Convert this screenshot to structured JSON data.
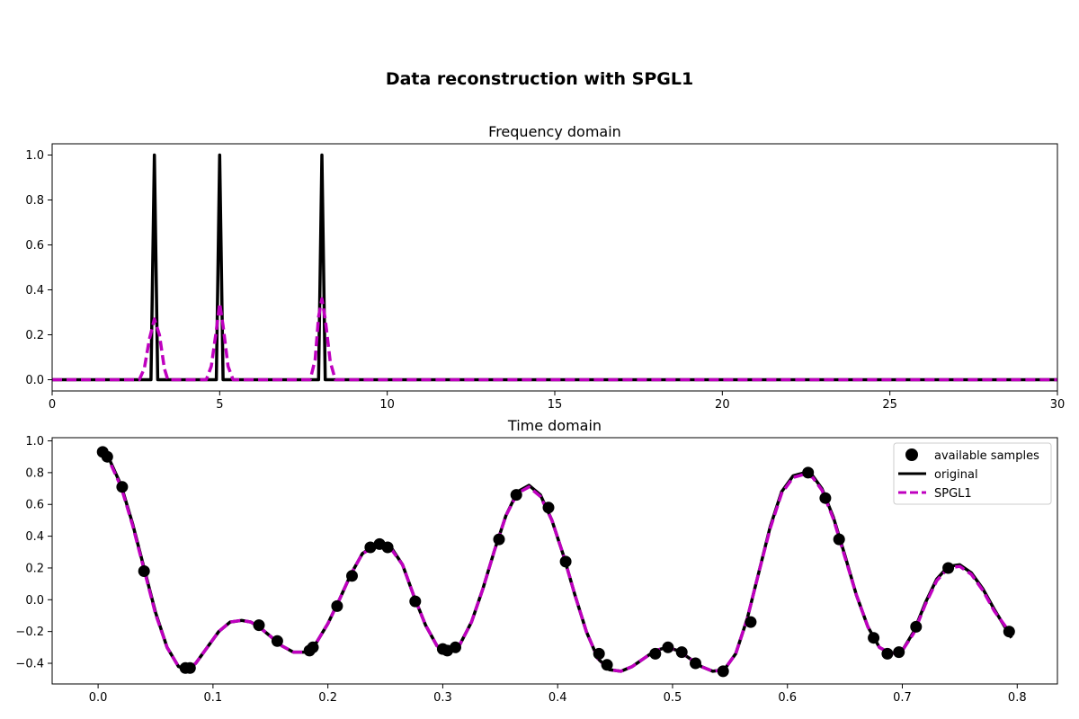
{
  "figure": {
    "suptitle": "Data reconstruction with SPGL1"
  },
  "colors": {
    "original": "#000000",
    "spgl1": "#bf00bf",
    "samples": "#000000"
  },
  "chart_data": [
    {
      "type": "line",
      "title": "Frequency domain",
      "xlabel": "",
      "ylabel": "",
      "xlim": [
        0,
        30
      ],
      "ylim": [
        -0.05,
        1.05
      ],
      "xticks": [
        0,
        5,
        10,
        15,
        20,
        25,
        30
      ],
      "xtick_labels": [
        "0",
        "5",
        "10",
        "15",
        "20",
        "25",
        "30"
      ],
      "yticks": [
        0.0,
        0.2,
        0.4,
        0.6,
        0.8,
        1.0
      ],
      "ytick_labels": [
        "0.0",
        "0.2",
        "0.4",
        "0.6",
        "0.8",
        "1.0"
      ],
      "grid": false,
      "series": [
        {
          "name": "original",
          "style": "solid",
          "x": [
            0,
            2.95,
            3.05,
            3.15,
            4.9,
            5.0,
            5.1,
            7.95,
            8.05,
            8.15,
            30
          ],
          "y": [
            0,
            0,
            1.0,
            0,
            0,
            1.0,
            0,
            0,
            1.0,
            0,
            0
          ]
        },
        {
          "name": "SPGL1",
          "style": "dashed",
          "x": [
            0,
            2.6,
            2.75,
            2.9,
            3.05,
            3.2,
            3.35,
            3.45,
            4.6,
            4.75,
            4.9,
            5.0,
            5.1,
            5.25,
            5.4,
            7.7,
            7.85,
            7.95,
            8.05,
            8.15,
            8.3,
            8.45,
            30
          ],
          "y": [
            0,
            0,
            0.05,
            0.18,
            0.27,
            0.2,
            0.05,
            0,
            0,
            0.06,
            0.22,
            0.34,
            0.24,
            0.06,
            0,
            0,
            0.09,
            0.28,
            0.36,
            0.27,
            0.08,
            0,
            0
          ]
        }
      ]
    },
    {
      "type": "line",
      "title": "Time domain",
      "xlabel": "",
      "ylabel": "",
      "xlim": [
        -0.04,
        0.835
      ],
      "ylim": [
        -0.53,
        1.02
      ],
      "xticks": [
        0.0,
        0.1,
        0.2,
        0.3,
        0.4,
        0.5,
        0.6,
        0.7,
        0.8
      ],
      "xtick_labels": [
        "0.0",
        "0.1",
        "0.2",
        "0.3",
        "0.4",
        "0.5",
        "0.6",
        "0.7",
        "0.8"
      ],
      "yticks": [
        -0.4,
        -0.2,
        0.0,
        0.2,
        0.4,
        0.6,
        0.8,
        1.0
      ],
      "ytick_labels": [
        "−0.4",
        "−0.2",
        "0.0",
        "0.2",
        "0.4",
        "0.6",
        "0.8",
        "1.0"
      ],
      "grid": false,
      "legend": {
        "placement": "top-right",
        "entries": [
          "available samples",
          "original",
          "SPGL1"
        ]
      },
      "series": [
        {
          "name": "original",
          "style": "solid",
          "x": [
            0.004,
            0.01,
            0.02,
            0.03,
            0.04,
            0.05,
            0.06,
            0.07,
            0.078,
            0.085,
            0.095,
            0.105,
            0.115,
            0.125,
            0.133,
            0.14,
            0.15,
            0.16,
            0.17,
            0.18,
            0.19,
            0.2,
            0.21,
            0.22,
            0.23,
            0.24,
            0.248,
            0.255,
            0.265,
            0.275,
            0.285,
            0.295,
            0.305,
            0.315,
            0.325,
            0.335,
            0.345,
            0.355,
            0.365,
            0.375,
            0.385,
            0.395,
            0.405,
            0.415,
            0.425,
            0.435,
            0.445,
            0.455,
            0.465,
            0.475,
            0.485,
            0.495,
            0.505,
            0.515,
            0.525,
            0.535,
            0.545,
            0.555,
            0.565,
            0.575,
            0.585,
            0.595,
            0.605,
            0.615,
            0.622,
            0.63,
            0.64,
            0.65,
            0.66,
            0.67,
            0.68,
            0.69,
            0.7,
            0.71,
            0.72,
            0.73,
            0.74,
            0.75,
            0.76,
            0.77,
            0.78,
            0.795
          ],
          "y": [
            0.93,
            0.88,
            0.72,
            0.48,
            0.2,
            -0.08,
            -0.3,
            -0.42,
            -0.44,
            -0.4,
            -0.3,
            -0.2,
            -0.14,
            -0.13,
            -0.14,
            -0.17,
            -0.23,
            -0.29,
            -0.33,
            -0.33,
            -0.27,
            -0.15,
            0.0,
            0.16,
            0.29,
            0.34,
            0.35,
            0.33,
            0.22,
            0.02,
            -0.16,
            -0.29,
            -0.33,
            -0.28,
            -0.14,
            0.07,
            0.31,
            0.53,
            0.68,
            0.72,
            0.66,
            0.5,
            0.28,
            0.03,
            -0.2,
            -0.37,
            -0.44,
            -0.45,
            -0.42,
            -0.37,
            -0.32,
            -0.3,
            -0.32,
            -0.37,
            -0.42,
            -0.45,
            -0.44,
            -0.34,
            -0.12,
            0.17,
            0.46,
            0.68,
            0.78,
            0.8,
            0.78,
            0.7,
            0.52,
            0.28,
            0.03,
            -0.17,
            -0.3,
            -0.34,
            -0.32,
            -0.2,
            -0.02,
            0.13,
            0.21,
            0.22,
            0.17,
            0.07,
            -0.06,
            -0.24
          ]
        },
        {
          "name": "SPGL1",
          "style": "dashed",
          "x": [
            0.004,
            0.01,
            0.02,
            0.03,
            0.04,
            0.05,
            0.06,
            0.07,
            0.078,
            0.085,
            0.095,
            0.105,
            0.115,
            0.125,
            0.133,
            0.14,
            0.15,
            0.16,
            0.17,
            0.18,
            0.19,
            0.2,
            0.21,
            0.22,
            0.23,
            0.24,
            0.248,
            0.255,
            0.265,
            0.275,
            0.285,
            0.295,
            0.305,
            0.315,
            0.325,
            0.335,
            0.345,
            0.355,
            0.365,
            0.375,
            0.385,
            0.395,
            0.405,
            0.415,
            0.425,
            0.435,
            0.445,
            0.455,
            0.465,
            0.475,
            0.485,
            0.495,
            0.505,
            0.515,
            0.525,
            0.535,
            0.545,
            0.555,
            0.565,
            0.575,
            0.585,
            0.595,
            0.605,
            0.615,
            0.622,
            0.63,
            0.64,
            0.65,
            0.66,
            0.67,
            0.68,
            0.69,
            0.7,
            0.71,
            0.72,
            0.73,
            0.74,
            0.75,
            0.76,
            0.77,
            0.78,
            0.795
          ],
          "y": [
            0.92,
            0.87,
            0.71,
            0.47,
            0.19,
            -0.09,
            -0.3,
            -0.42,
            -0.44,
            -0.4,
            -0.3,
            -0.2,
            -0.14,
            -0.13,
            -0.14,
            -0.17,
            -0.23,
            -0.29,
            -0.33,
            -0.33,
            -0.27,
            -0.15,
            0.0,
            0.16,
            0.29,
            0.33,
            0.34,
            0.32,
            0.22,
            0.02,
            -0.16,
            -0.29,
            -0.33,
            -0.28,
            -0.14,
            0.07,
            0.31,
            0.53,
            0.67,
            0.71,
            0.65,
            0.5,
            0.28,
            0.03,
            -0.2,
            -0.37,
            -0.44,
            -0.45,
            -0.42,
            -0.37,
            -0.32,
            -0.3,
            -0.32,
            -0.37,
            -0.42,
            -0.45,
            -0.44,
            -0.34,
            -0.12,
            0.17,
            0.45,
            0.67,
            0.77,
            0.79,
            0.77,
            0.69,
            0.51,
            0.27,
            0.03,
            -0.17,
            -0.3,
            -0.34,
            -0.32,
            -0.21,
            -0.03,
            0.12,
            0.2,
            0.21,
            0.16,
            0.06,
            -0.07,
            -0.22
          ]
        },
        {
          "name": "available samples",
          "style": "markers",
          "x": [
            0.004,
            0.008,
            0.021,
            0.04,
            0.076,
            0.08,
            0.14,
            0.156,
            0.184,
            0.187,
            0.208,
            0.221,
            0.237,
            0.245,
            0.252,
            0.276,
            0.3,
            0.304,
            0.311,
            0.349,
            0.364,
            0.392,
            0.407,
            0.436,
            0.443,
            0.485,
            0.496,
            0.508,
            0.52,
            0.544,
            0.568,
            0.618,
            0.633,
            0.645,
            0.675,
            0.687,
            0.697,
            0.712,
            0.74,
            0.793
          ],
          "y": [
            0.93,
            0.9,
            0.71,
            0.18,
            -0.43,
            -0.43,
            -0.16,
            -0.26,
            -0.32,
            -0.3,
            -0.04,
            0.15,
            0.33,
            0.35,
            0.33,
            -0.01,
            -0.31,
            -0.32,
            -0.3,
            0.38,
            0.66,
            0.58,
            0.24,
            -0.34,
            -0.41,
            -0.34,
            -0.3,
            -0.33,
            -0.4,
            -0.45,
            -0.14,
            0.8,
            0.64,
            0.38,
            -0.24,
            -0.34,
            -0.33,
            -0.17,
            0.2,
            -0.2
          ]
        }
      ]
    }
  ]
}
